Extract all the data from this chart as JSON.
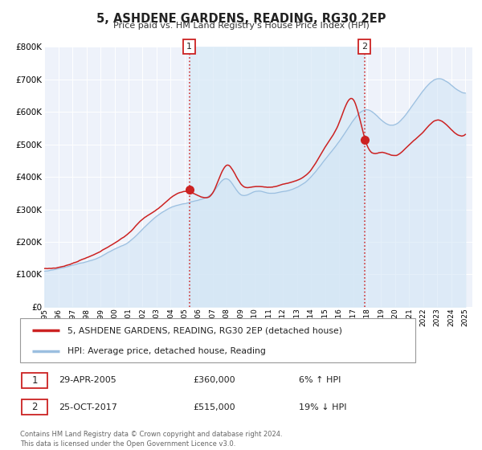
{
  "title": "5, ASHDENE GARDENS, READING, RG30 2EP",
  "subtitle": "Price paid vs. HM Land Registry's House Price Index (HPI)",
  "ylim": [
    0,
    800000
  ],
  "xlim": [
    1995.0,
    2025.5
  ],
  "yticks": [
    0,
    100000,
    200000,
    300000,
    400000,
    500000,
    600000,
    700000,
    800000
  ],
  "ytick_labels": [
    "£0",
    "£100K",
    "£200K",
    "£300K",
    "£400K",
    "£500K",
    "£600K",
    "£700K",
    "£800K"
  ],
  "xticks": [
    1995,
    1996,
    1997,
    1998,
    1999,
    2000,
    2001,
    2002,
    2003,
    2004,
    2005,
    2006,
    2007,
    2008,
    2009,
    2010,
    2011,
    2012,
    2013,
    2014,
    2015,
    2016,
    2017,
    2018,
    2019,
    2020,
    2021,
    2022,
    2023,
    2024,
    2025
  ],
  "hpi_color": "#9bbfe0",
  "hpi_fill_color": "#d0e4f5",
  "price_color": "#cc2222",
  "bg_color": "#eef2fa",
  "shade_color": "#d8eaf7",
  "sale1_x": 2005.33,
  "sale1_y": 360000,
  "sale2_x": 2017.81,
  "sale2_y": 515000,
  "legend_label_price": "5, ASHDENE GARDENS, READING, RG30 2EP (detached house)",
  "legend_label_hpi": "HPI: Average price, detached house, Reading",
  "sale1_date": "29-APR-2005",
  "sale1_price": "£360,000",
  "sale1_hpi": "6% ↑ HPI",
  "sale2_date": "25-OCT-2017",
  "sale2_price": "£515,000",
  "sale2_hpi": "19% ↓ HPI",
  "footnote": "Contains HM Land Registry data © Crown copyright and database right 2024.\nThis data is licensed under the Open Government Licence v3.0."
}
